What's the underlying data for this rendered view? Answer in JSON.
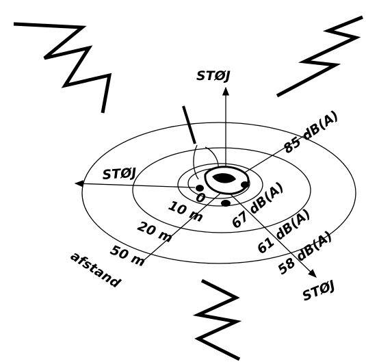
{
  "noise_labels": [
    "STØJ",
    "STØJ",
    "STØJ"
  ],
  "distances": [
    "0",
    "10 m",
    "20 m",
    "50 m"
  ],
  "distance_label": "afstand",
  "levels": [
    "85 dB(A)",
    "67 dB(A)",
    "61 dB(A)",
    "58 dB(A)"
  ]
}
